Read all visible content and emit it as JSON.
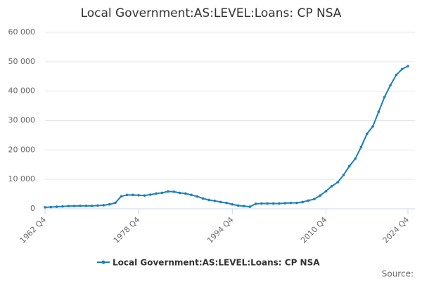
{
  "chart_data": {
    "type": "line",
    "title": "Local Government:AS:LEVEL:Loans: CP NSA",
    "categories": [
      "1962 Q4",
      null,
      null,
      null,
      null,
      null,
      null,
      null,
      null,
      null,
      null,
      null,
      null,
      null,
      null,
      null,
      "1978 Q4",
      null,
      null,
      null,
      null,
      null,
      null,
      null,
      null,
      null,
      null,
      null,
      null,
      null,
      null,
      null,
      "1994 Q4",
      null,
      null,
      null,
      null,
      null,
      null,
      null,
      null,
      null,
      null,
      null,
      null,
      null,
      null,
      null,
      "2010 Q4",
      null,
      null,
      null,
      null,
      null,
      null,
      null,
      null,
      null,
      null,
      null,
      null,
      null,
      "2024 Q4"
    ],
    "series": [
      {
        "name": "Local Government:AS:LEVEL:Loans: CP NSA",
        "color": "#1a80bf",
        "values": [
          500,
          600,
          700,
          800,
          900,
          950,
          1000,
          1000,
          1000,
          1100,
          1200,
          1500,
          2000,
          4200,
          4700,
          4700,
          4600,
          4500,
          4800,
          5200,
          5400,
          5900,
          5800,
          5400,
          5200,
          4700,
          4200,
          3500,
          3000,
          2700,
          2300,
          2000,
          1500,
          1100,
          900,
          700,
          1700,
          1800,
          1800,
          1800,
          1800,
          1900,
          2000,
          2000,
          2300,
          2800,
          3300,
          4500,
          6000,
          7700,
          9000,
          11500,
          14500,
          17000,
          21000,
          25500,
          28000,
          33000,
          38000,
          42000,
          45500,
          47500,
          48500
        ]
      }
    ],
    "ylim": [
      0,
      60000
    ],
    "yticks": [
      0,
      {
        "value": 10000,
        "label": "10 000"
      },
      {
        "value": 20000,
        "label": "20 000"
      },
      {
        "value": 30000,
        "label": "30 000"
      },
      {
        "value": 40000,
        "label": "40 000"
      },
      {
        "value": 50000,
        "label": "50 000"
      },
      {
        "value": 60000,
        "label": "60 000"
      }
    ],
    "grid": true,
    "source": "Source:"
  }
}
